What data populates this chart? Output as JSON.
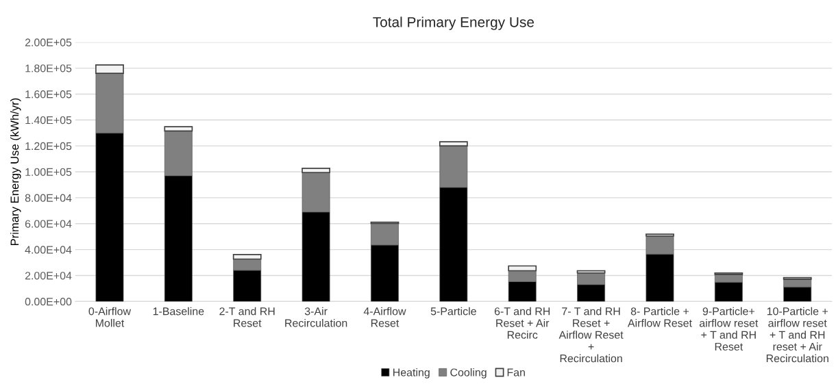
{
  "chart_data": {
    "type": "bar",
    "title": "Total Primary Energy Use",
    "ylabel": "Primary Energy Use (kWh/yr)",
    "stacked": true,
    "grid": "y",
    "legend": "bottom",
    "categories": [
      "0-Airflow Mollet",
      "1-Baseline",
      "2-T and RH Reset",
      "3-Air Recirculation",
      "4-Airflow Reset",
      "5-Particle",
      "6-T and RH Reset + Air Recirc",
      "7- T and RH Reset + Airflow Reset + Recirculation",
      "8- Particle + Airflow Reset",
      "9-Particle+ airflow reset + T and RH Reset",
      "10-Particle + airflow reset + T and RH reset + Air Recirculation"
    ],
    "series": [
      {
        "name": "Heating",
        "color": "#000000",
        "values": [
          130000,
          97000,
          24000,
          69000,
          43500,
          88000,
          15300,
          13000,
          36500,
          14800,
          11200
        ]
      },
      {
        "name": "Cooling",
        "color": "#808080",
        "values": [
          46000,
          34500,
          8700,
          30500,
          16700,
          32000,
          8400,
          9000,
          14000,
          6100,
          6000
        ]
      },
      {
        "name": "Fan",
        "color": "#f2f2f2",
        "values": [
          6500,
          3300,
          3500,
          3200,
          1000,
          3200,
          3700,
          1600,
          1400,
          1000,
          1200
        ]
      }
    ],
    "ylim": [
      0,
      200000
    ],
    "yticks": [
      {
        "value": 0,
        "label": "0.00E+00"
      },
      {
        "value": 20000,
        "label": "2.00E+04"
      },
      {
        "value": 40000,
        "label": "4.00E+04"
      },
      {
        "value": 60000,
        "label": "6.00E+04"
      },
      {
        "value": 80000,
        "label": "8.00E+04"
      },
      {
        "value": 100000,
        "label": "1.00E+05"
      },
      {
        "value": 120000,
        "label": "1.20E+05"
      },
      {
        "value": 140000,
        "label": "1.40E+05"
      },
      {
        "value": 160000,
        "label": "1.60E+05"
      },
      {
        "value": 180000,
        "label": "1.80E+05"
      },
      {
        "value": 200000,
        "label": "2.00E+05"
      }
    ]
  }
}
